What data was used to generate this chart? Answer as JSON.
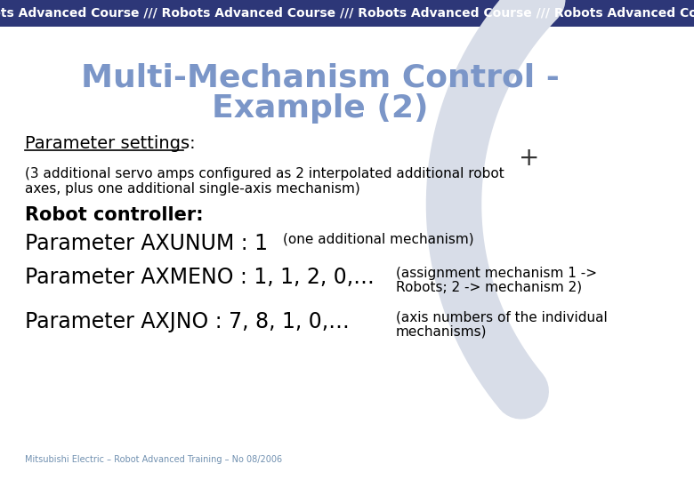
{
  "header_bg": "#2d3778",
  "header_text": "Robots Advanced Course /// Robots Advanced Course /// Robots Advanced Course /// Robots Advanced Course",
  "header_text_color": "#ffffff",
  "header_fontsize": 10,
  "bg_color": "#ffffff",
  "title_line1": "Multi-Mechanism Control -",
  "title_line2": "Example (2)",
  "title_color": "#7b96c8",
  "title_fontsize": 26,
  "section1_label": "Parameter settings:",
  "section1_fontsize": 14,
  "section1_color": "#000000",
  "body1_line1": "(3 additional servo amps configured as 2 interpolated additional robot",
  "body1_line2": "axes, plus one additional single-axis mechanism)",
  "body1_fontsize": 11,
  "body1_color": "#000000",
  "section2_label": "Robot controller:",
  "section2_fontsize": 15,
  "section2_color": "#000000",
  "param1_main": "Parameter AXUNUM : 1",
  "param1_sub": "(one additional mechanism)",
  "param1_main_fontsize": 17,
  "param1_sub_fontsize": 11,
  "param2_main": "Parameter AXMENO : 1, 1, 2, 0,…",
  "param2_sub_line1": "(assignment mechanism 1 ->",
  "param2_sub_line2": "Robots; 2 -> mechanism 2)",
  "param2_main_fontsize": 17,
  "param2_sub_fontsize": 11,
  "param3_main": "Parameter AXJNO : 7, 8, 1, 0,…",
  "param3_sub_line1": "(axis numbers of the individual",
  "param3_sub_line2": "mechanisms)",
  "param3_main_fontsize": 17,
  "param3_sub_fontsize": 11,
  "footer_text": "Mitsubishi Electric – Robot Advanced Training – No 08/2006",
  "footer_fontsize": 7,
  "footer_color": "#7090b0",
  "arc_color": "#d8dde8",
  "plus_symbol": "+",
  "plus_fontsize": 20,
  "plus_color": "#333333"
}
